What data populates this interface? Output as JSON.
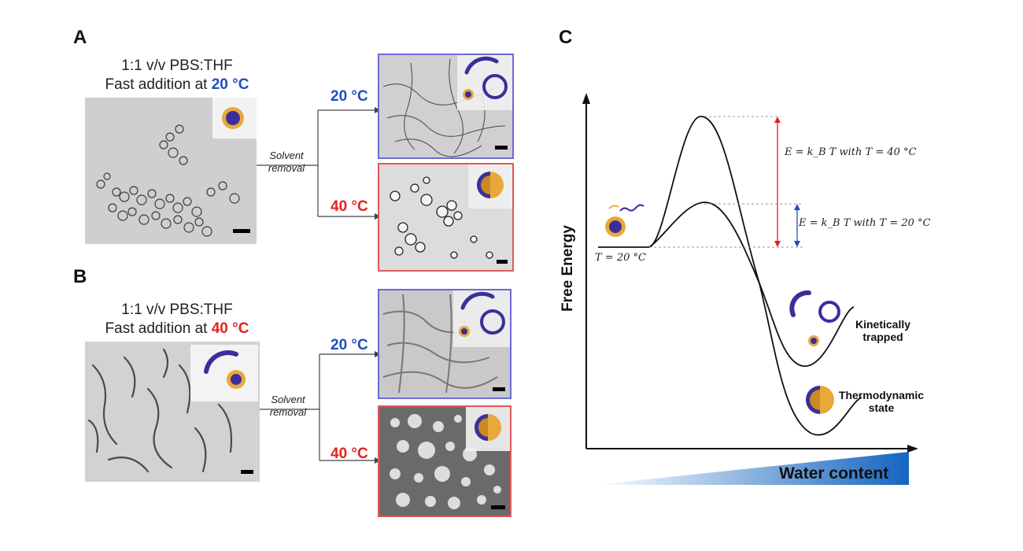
{
  "panels": {
    "A": {
      "letter": "A",
      "condition_line1": "1:1 v/v PBS:THF",
      "condition_line2_prefix": "Fast addition at ",
      "condition_temp": "20 °C",
      "solvent_line1": "Solvent",
      "solvent_line2": "removal",
      "branch_top_temp": "20 °C",
      "branch_bottom_temp": "40 °C"
    },
    "B": {
      "letter": "B",
      "condition_line1": "1:1 v/v PBS:THF",
      "condition_line2_prefix": "Fast addition at ",
      "condition_temp": "40 °C",
      "solvent_line1": "Solvent",
      "solvent_line2": "removal",
      "branch_top_temp": "20 °C",
      "branch_bottom_temp": "40 °C"
    },
    "C": {
      "letter": "C",
      "y_axis_label": "Free Energy",
      "x_axis_label": "Water content",
      "start_temp_label": "T = 20 °C",
      "energy_label_40": "E = k_B T with T = 40 °C",
      "energy_label_20": "E = k_B T with T = 20 °C",
      "kinetic_label_line1": "Kinetically",
      "kinetic_label_line2": "trapped",
      "thermo_label_line1": "Thermodynamic",
      "thermo_label_line2": "state"
    }
  },
  "colors": {
    "blue_temp": "#1f4fbf",
    "red_temp": "#e0241f",
    "polymer_purple": "#3a2f9a",
    "corona_orange": "#e8a93a",
    "gradient_blue": "#1565c0"
  }
}
